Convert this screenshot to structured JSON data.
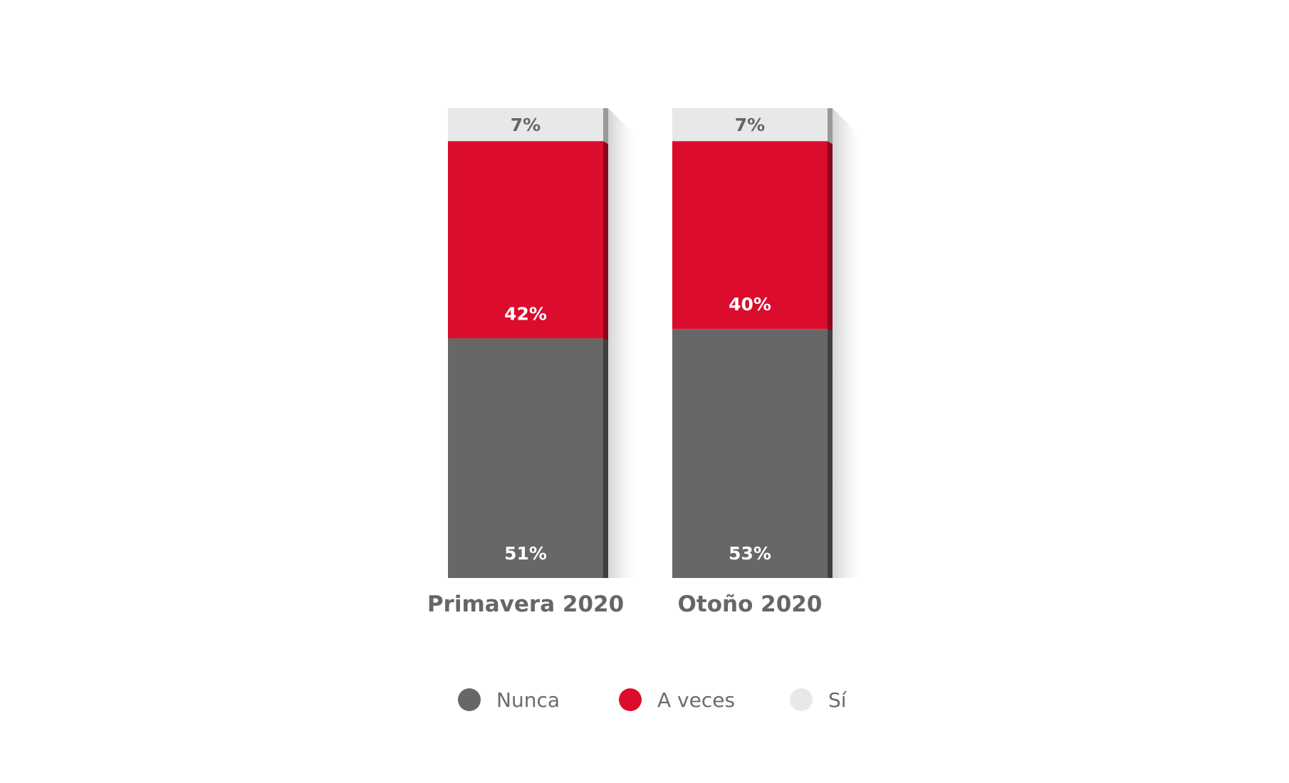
{
  "chart_data": {
    "type": "bar",
    "stacked": true,
    "categories": [
      "Primavera 2020",
      "Otoño 2020"
    ],
    "series": [
      {
        "name": "Nunca",
        "values": [
          51,
          53
        ],
        "color": "#676767",
        "label_color": "#ffffff"
      },
      {
        "name": "A veces",
        "values": [
          42,
          40
        ],
        "color": "#dc0c2d",
        "label_color": "#ffffff"
      },
      {
        "name": "Sí",
        "values": [
          7,
          7
        ],
        "color": "#e8e8e8",
        "label_color": "#666666"
      }
    ],
    "value_suffix": "%",
    "ylim": [
      0,
      100
    ],
    "grid": false,
    "legend_position": "bottom"
  }
}
